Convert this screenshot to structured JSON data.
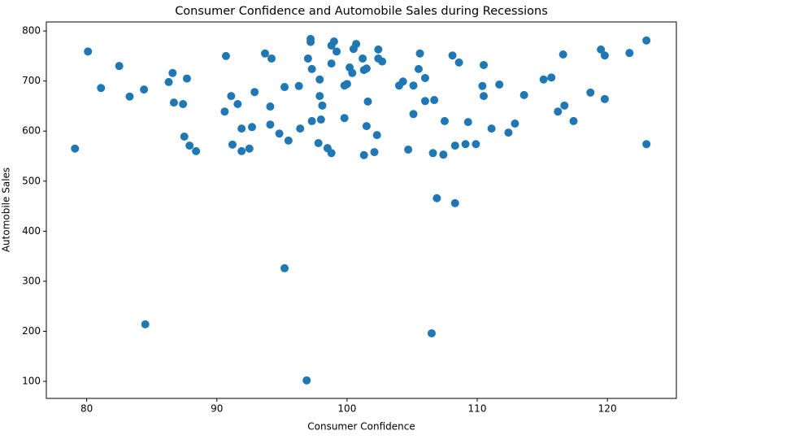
{
  "chart_data": {
    "type": "scatter",
    "title": "Consumer Confidence and Automobile Sales during Recessions",
    "x_label": "Consumer Confidence",
    "y_label": "Automobile Sales",
    "color": "#1f77b4",
    "xlim": [
      76.9,
      125.3
    ],
    "ylim": [
      66,
      818
    ],
    "xticks": [
      80,
      90,
      100,
      110,
      120
    ],
    "yticks": [
      100,
      200,
      300,
      400,
      500,
      600,
      700,
      800
    ],
    "x": [
      79.1,
      80.1,
      81.1,
      82.5,
      83.3,
      84.4,
      84.5,
      86.3,
      86.6,
      86.7,
      87.4,
      87.7,
      87.5,
      87.9,
      88.4,
      90.7,
      90.6,
      91.1,
      91.2,
      91.6,
      91.9,
      91.9,
      92.5,
      92.7,
      92.9,
      93.7,
      94.2,
      94.1,
      94.1,
      94.8,
      95.2,
      95.2,
      95.5,
      96.3,
      96.4,
      96.9,
      97.0,
      97.2,
      97.2,
      97.3,
      97.3,
      97.9,
      97.9,
      98.0,
      97.8,
      98.1,
      98.5,
      98.8,
      98.8,
      98.8,
      99.0,
      99.2,
      99.8,
      99.8,
      100.0,
      100.2,
      100.4,
      100.5,
      100.7,
      101.2,
      101.3,
      101.3,
      101.5,
      101.5,
      101.6,
      102.1,
      102.3,
      102.4,
      102.4,
      102.7,
      104.0,
      104.3,
      104.7,
      105.1,
      105.1,
      105.5,
      105.6,
      106.0,
      106.0,
      106.5,
      106.6,
      106.7,
      106.9,
      107.4,
      107.5,
      108.1,
      108.3,
      108.3,
      108.6,
      109.1,
      109.3,
      109.9,
      110.4,
      110.5,
      110.5,
      111.1,
      111.7,
      112.4,
      112.9,
      113.6,
      115.1,
      115.7,
      116.2,
      116.6,
      116.7,
      117.4,
      118.7,
      119.5,
      119.8,
      119.8,
      121.7,
      123.0,
      123.0
    ],
    "values": [
      565,
      759,
      686,
      730,
      669,
      683,
      214,
      698,
      716,
      657,
      654,
      705,
      589,
      571,
      560,
      750,
      639,
      670,
      573,
      654,
      560,
      605,
      565,
      608,
      678,
      755,
      745,
      649,
      613,
      595,
      688,
      326,
      581,
      690,
      605,
      102,
      745,
      784,
      778,
      724,
      620,
      703,
      670,
      623,
      576,
      651,
      566,
      556,
      771,
      735,
      779,
      759,
      626,
      691,
      694,
      727,
      716,
      764,
      774,
      745,
      722,
      552,
      610,
      725,
      659,
      558,
      592,
      763,
      745,
      739,
      691,
      699,
      563,
      691,
      634,
      724,
      755,
      706,
      660,
      196,
      556,
      662,
      466,
      553,
      620,
      751,
      456,
      571,
      737,
      574,
      618,
      574,
      690,
      732,
      670,
      605,
      693,
      597,
      615,
      672,
      703,
      707,
      639,
      753,
      651,
      620,
      677,
      763,
      751,
      664,
      756,
      781,
      574
    ]
  }
}
